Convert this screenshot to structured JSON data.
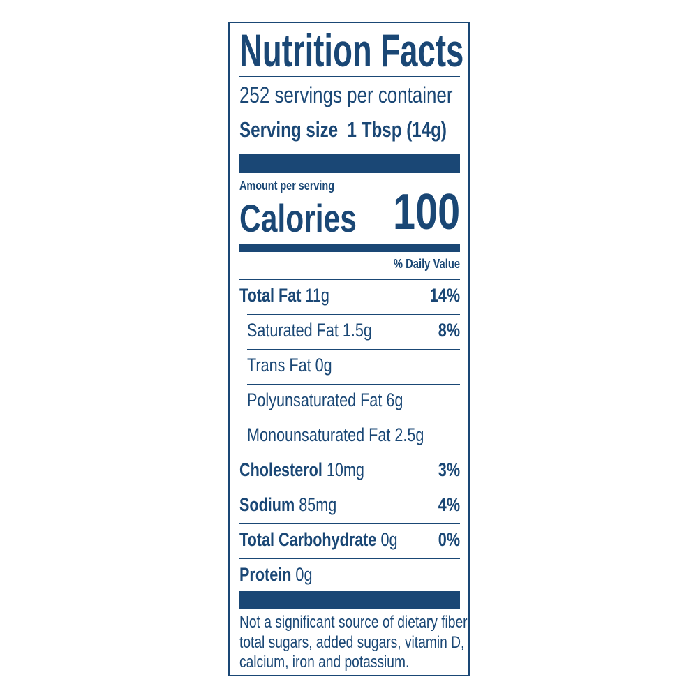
{
  "title": "Nutrition Facts",
  "servings_per_container": "252 servings per container",
  "serving_size": {
    "label": "Serving size",
    "value": "1 Tbsp (14g)"
  },
  "amount_per_serving": "Amount per serving",
  "calories": {
    "label": "Calories",
    "value": "100"
  },
  "daily_value_header": "% Daily Value",
  "nutrients": [
    {
      "name": "Total Fat",
      "amount": "11g",
      "dv": "14%"
    },
    {
      "name": "Saturated Fat 1.5g",
      "amount": "",
      "dv": "8%"
    },
    {
      "name": "Trans Fat 0g",
      "amount": "",
      "dv": ""
    },
    {
      "name": "Polyunsaturated Fat 6g",
      "amount": "",
      "dv": ""
    },
    {
      "name": "Monounsaturated Fat 2.5g",
      "amount": "",
      "dv": ""
    },
    {
      "name": "Cholesterol",
      "amount": "10mg",
      "dv": "3%"
    },
    {
      "name": "Sodium",
      "amount": "85mg",
      "dv": "4%"
    },
    {
      "name": "Total Carbohydrate",
      "amount": "0g",
      "dv": "0%"
    },
    {
      "name": "Protein",
      "amount": "0g",
      "dv": ""
    }
  ],
  "footnote": [
    "Not a significant source of dietary fiber,",
    "total sugars, added sugars, vitamin D,",
    "calcium, iron and potassium."
  ],
  "colors": {
    "ink": "#1a4775",
    "background": "#ffffff"
  }
}
